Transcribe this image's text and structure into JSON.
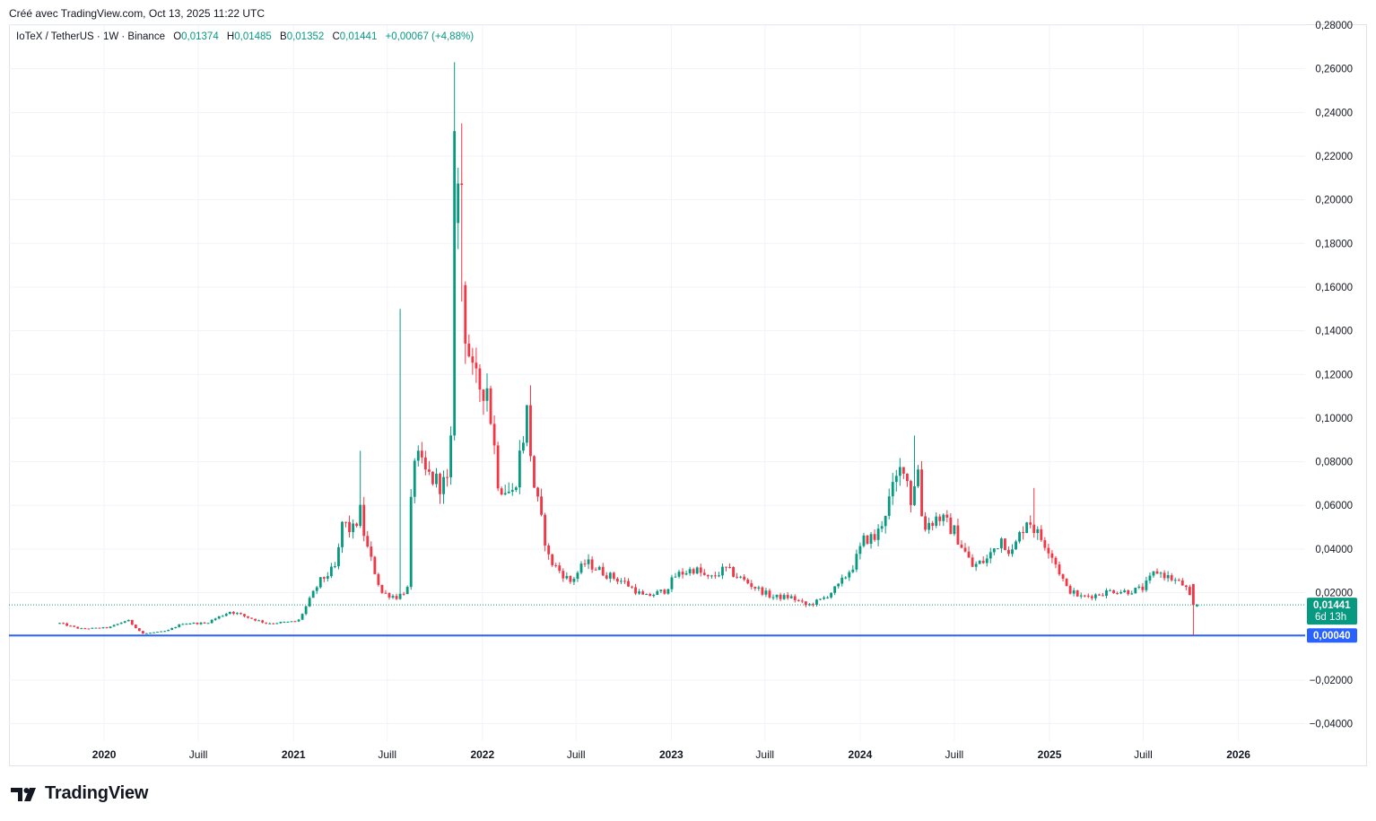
{
  "credit": "Créé avec TradingView.com, Oct 13, 2025 11:22 UTC",
  "legend": {
    "symbol": "IoTeX / TetherUS · 1W · Binance",
    "open_label": "O",
    "open": "0,01374",
    "high_label": "H",
    "high": "0,01485",
    "low_label": "B",
    "low": "0,01352",
    "close_label": "C",
    "close": "0,01441",
    "change": "+0,00067 (+4,88%)"
  },
  "footer": {
    "brand": "TradingView"
  },
  "colors": {
    "up": "#089981",
    "down": "#f23645",
    "hline": "#2962ff",
    "grid": "#f0f3fa"
  },
  "chart_data": {
    "type": "candlestick",
    "symbol": "IoTeX / TetherUS",
    "interval": "1W",
    "exchange": "Binance",
    "ylim": [
      -0.048,
      0.28
    ],
    "y_ticks": [
      {
        "value": -0.04,
        "label": "−0,04000"
      },
      {
        "value": -0.02,
        "label": "−0,02000"
      },
      {
        "value": 0.02,
        "label": "0,02000"
      },
      {
        "value": 0.04,
        "label": "0,04000"
      },
      {
        "value": 0.06,
        "label": "0,06000"
      },
      {
        "value": 0.08,
        "label": "0,08000"
      },
      {
        "value": 0.1,
        "label": "0,10000"
      },
      {
        "value": 0.12,
        "label": "0,12000"
      },
      {
        "value": 0.14,
        "label": "0,14000"
      },
      {
        "value": 0.16,
        "label": "0,16000"
      },
      {
        "value": 0.18,
        "label": "0,18000"
      },
      {
        "value": 0.2,
        "label": "0,20000"
      },
      {
        "value": 0.22,
        "label": "0,22000"
      },
      {
        "value": 0.24,
        "label": "0,24000"
      },
      {
        "value": 0.26,
        "label": "0,26000"
      },
      {
        "value": 0.28,
        "label": "0,28000"
      }
    ],
    "x_ticks": [
      {
        "date": "2020-01-01",
        "label": "2020",
        "major": true
      },
      {
        "date": "2020-07-01",
        "label": "Juill",
        "major": false
      },
      {
        "date": "2021-01-01",
        "label": "2021",
        "major": true
      },
      {
        "date": "2021-07-01",
        "label": "Juill",
        "major": false
      },
      {
        "date": "2022-01-01",
        "label": "2022",
        "major": true
      },
      {
        "date": "2022-07-01",
        "label": "Juill",
        "major": false
      },
      {
        "date": "2023-01-01",
        "label": "2023",
        "major": true
      },
      {
        "date": "2023-07-01",
        "label": "Juill",
        "major": false
      },
      {
        "date": "2024-01-01",
        "label": "2024",
        "major": true
      },
      {
        "date": "2024-07-01",
        "label": "Juill",
        "major": false
      },
      {
        "date": "2025-01-01",
        "label": "2025",
        "major": true
      },
      {
        "date": "2025-07-01",
        "label": "Juill",
        "major": false
      },
      {
        "date": "2026-01-01",
        "label": "2026",
        "major": true
      }
    ],
    "xlim": [
      "2019-07-01",
      "2026-05-10"
    ],
    "candles_start": "2019-10-07",
    "close_path": [
      [
        "2019-10-07",
        0.006
      ],
      [
        "2019-11-15",
        0.0035
      ],
      [
        "2020-01-10",
        0.004
      ],
      [
        "2020-02-15",
        0.0075
      ],
      [
        "2020-03-15",
        0.0012
      ],
      [
        "2020-05-01",
        0.0025
      ],
      [
        "2020-06-01",
        0.006
      ],
      [
        "2020-07-15",
        0.006
      ],
      [
        "2020-09-01",
        0.0115
      ],
      [
        "2020-10-01",
        0.009
      ],
      [
        "2020-11-10",
        0.006
      ],
      [
        "2020-12-20",
        0.0065
      ],
      [
        "2021-01-10",
        0.007
      ],
      [
        "2021-02-20",
        0.025
      ],
      [
        "2021-03-25",
        0.032
      ],
      [
        "2021-04-05",
        0.052
      ],
      [
        "2021-04-25",
        0.048
      ],
      [
        "2021-05-10",
        0.057
      ],
      [
        "2021-05-20",
        0.043
      ],
      [
        "2021-06-20",
        0.02
      ],
      [
        "2021-07-20",
        0.018
      ],
      [
        "2021-08-10",
        0.022
      ],
      [
        "2021-08-20",
        0.085
      ],
      [
        "2021-09-10",
        0.075
      ],
      [
        "2021-10-10",
        0.07
      ],
      [
        "2021-10-31",
        0.07
      ],
      [
        "2021-11-10",
        0.232
      ],
      [
        "2021-11-24",
        0.15
      ],
      [
        "2021-12-15",
        0.115
      ],
      [
        "2022-01-10",
        0.115
      ],
      [
        "2022-02-01",
        0.07
      ],
      [
        "2022-03-01",
        0.065
      ],
      [
        "2022-03-28",
        0.102
      ],
      [
        "2022-04-10",
        0.07
      ],
      [
        "2022-05-10",
        0.035
      ],
      [
        "2022-06-20",
        0.025
      ],
      [
        "2022-07-20",
        0.034
      ],
      [
        "2022-09-01",
        0.028
      ],
      [
        "2022-10-01",
        0.025
      ],
      [
        "2022-11-10",
        0.018
      ],
      [
        "2022-12-20",
        0.021
      ],
      [
        "2023-01-10",
        0.028
      ],
      [
        "2023-02-15",
        0.031
      ],
      [
        "2023-03-15",
        0.026
      ],
      [
        "2023-04-15",
        0.031
      ],
      [
        "2023-06-15",
        0.022
      ],
      [
        "2023-07-15",
        0.018
      ],
      [
        "2023-08-20",
        0.018
      ],
      [
        "2023-09-20",
        0.014
      ],
      [
        "2023-10-20",
        0.017
      ],
      [
        "2023-11-20",
        0.023
      ],
      [
        "2023-12-20",
        0.033
      ],
      [
        "2024-01-10",
        0.045
      ],
      [
        "2024-02-01",
        0.045
      ],
      [
        "2024-03-01",
        0.065
      ],
      [
        "2024-03-25",
        0.08
      ],
      [
        "2024-04-10",
        0.06
      ],
      [
        "2024-04-20",
        0.082
      ],
      [
        "2024-05-01",
        0.05
      ],
      [
        "2024-06-01",
        0.055
      ],
      [
        "2024-07-01",
        0.048
      ],
      [
        "2024-08-05",
        0.032
      ],
      [
        "2024-09-01",
        0.035
      ],
      [
        "2024-09-30",
        0.045
      ],
      [
        "2024-10-20",
        0.038
      ],
      [
        "2024-11-20",
        0.055
      ],
      [
        "2024-12-05",
        0.048
      ],
      [
        "2025-01-01",
        0.04
      ],
      [
        "2025-02-03",
        0.022
      ],
      [
        "2025-03-01",
        0.018
      ],
      [
        "2025-04-01",
        0.019
      ],
      [
        "2025-05-01",
        0.021
      ],
      [
        "2025-06-01",
        0.0205
      ],
      [
        "2025-07-01",
        0.022
      ],
      [
        "2025-07-25",
        0.03
      ],
      [
        "2025-08-20",
        0.027
      ],
      [
        "2025-09-20",
        0.023
      ],
      [
        "2025-10-06",
        0.01374
      ],
      [
        "2025-10-13",
        0.01441
      ]
    ],
    "spikes": [
      {
        "date": "2021-05-10",
        "high": 0.085
      },
      {
        "date": "2021-07-26",
        "high": 0.15
      },
      {
        "date": "2021-11-08",
        "high": 0.263
      },
      {
        "date": "2021-11-22",
        "high": 0.235
      },
      {
        "date": "2022-04-04",
        "high": 0.115
      },
      {
        "date": "2024-04-15",
        "high": 0.092
      },
      {
        "date": "2024-12-02",
        "high": 0.068
      },
      {
        "date": "2025-10-06",
        "low": 0.0004
      }
    ],
    "last_candle": {
      "open": 0.01374,
      "high": 0.01485,
      "low": 0.01352,
      "close": 0.01441
    },
    "price_line": {
      "value": 0.01441,
      "label": "0,01441",
      "countdown": "6d 13h"
    },
    "horizontal_line": {
      "value": 0.0004,
      "label": "0,00040"
    }
  }
}
